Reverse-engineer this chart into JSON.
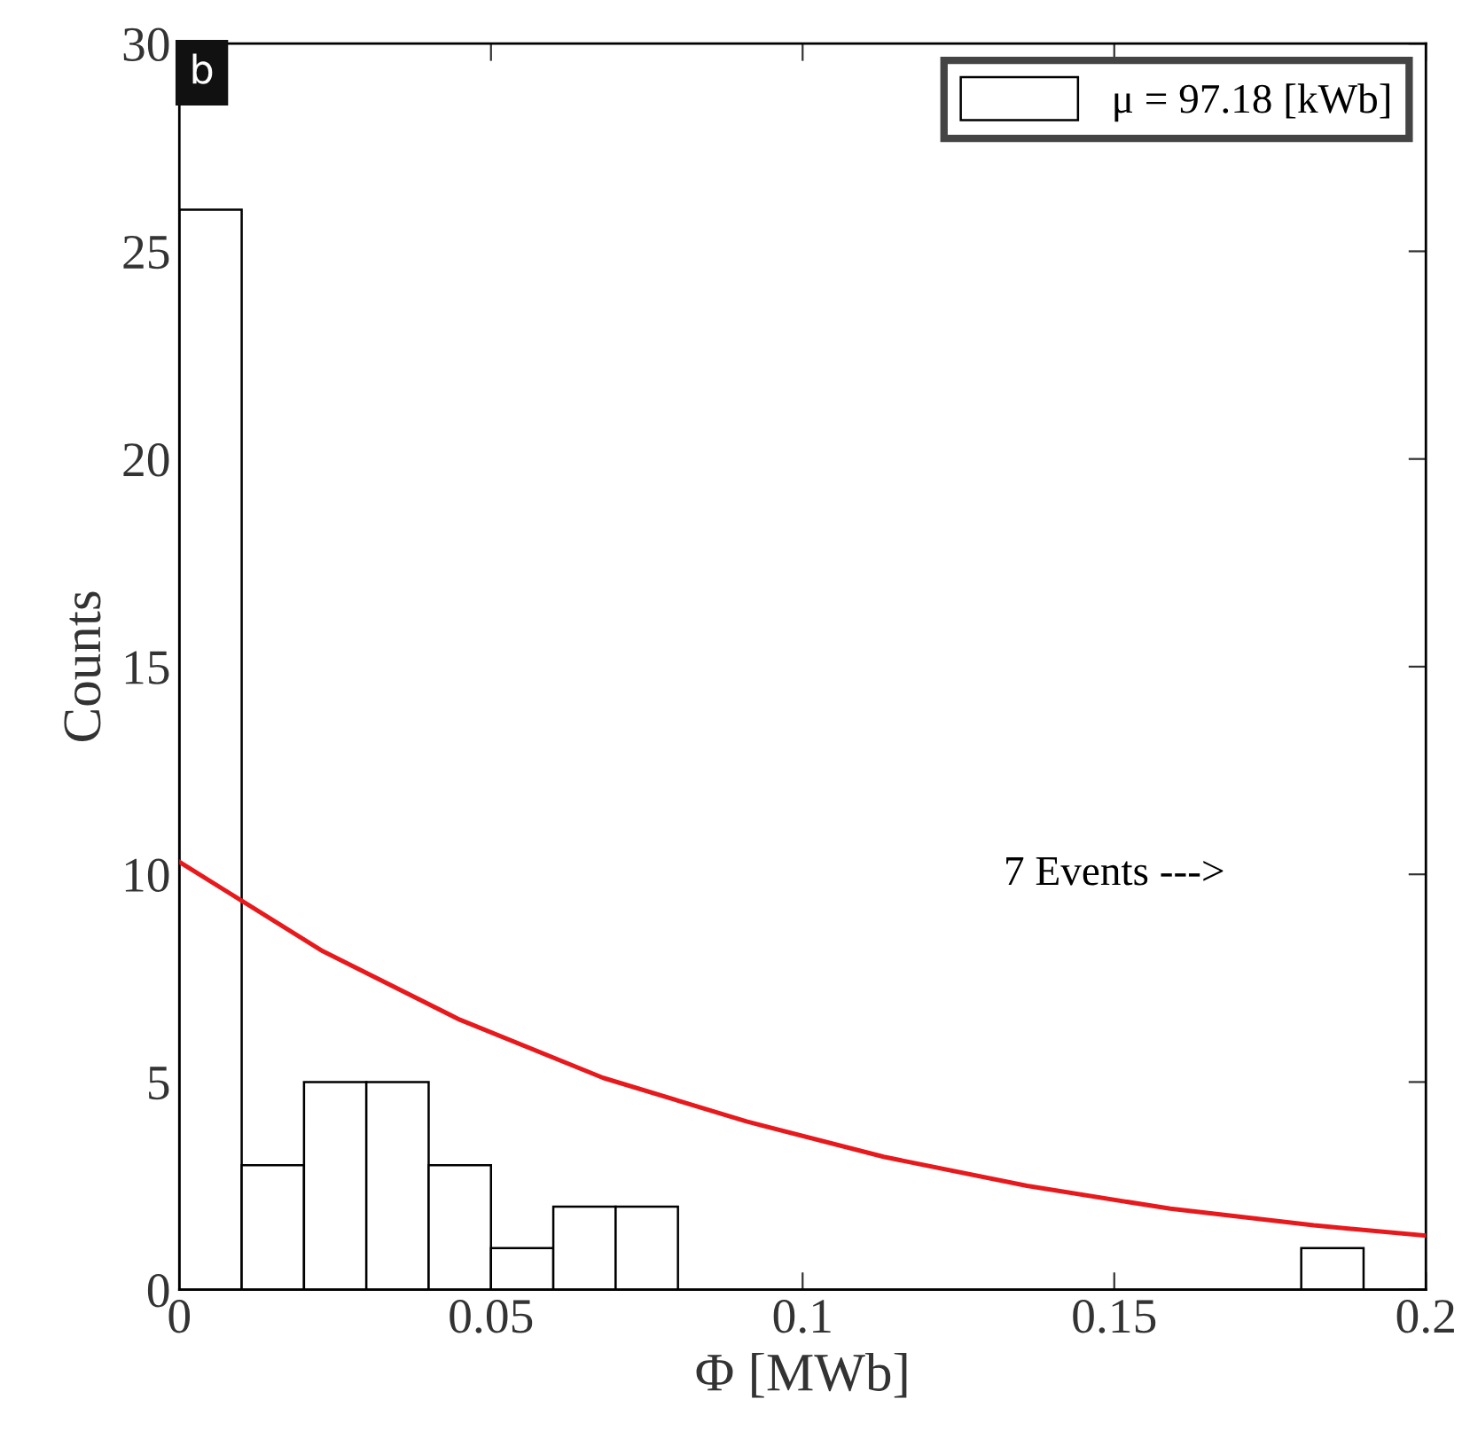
{
  "chart_data": {
    "type": "histogram",
    "xlabel": "Φ [MWb]",
    "ylabel": "Counts",
    "bins": [
      0,
      0.01,
      0.02,
      0.03,
      0.04,
      0.05,
      0.06,
      0.07,
      0.08,
      0.09,
      0.1,
      0.11,
      0.12,
      0.13,
      0.14,
      0.15,
      0.16,
      0.17,
      0.18,
      0.19,
      0.2
    ],
    "series": [
      {
        "name": "μ = 97.18 [kWb]",
        "color": "#ffffff",
        "values": [
          26,
          3,
          5,
          5,
          3,
          1,
          2,
          2,
          0,
          0,
          0,
          0,
          0,
          0,
          0,
          0,
          0,
          0,
          1,
          0
        ]
      },
      {
        "type": "line",
        "color": "#e8191c",
        "x": [
          0,
          0.023,
          0.045,
          0.068,
          0.091,
          0.113,
          0.136,
          0.159,
          0.182,
          0.2
        ],
        "values": [
          10.3,
          8.15,
          6.5,
          5.1,
          4.05,
          3.2,
          2.5,
          1.95,
          1.55,
          1.3
        ]
      }
    ],
    "xlim": [
      0,
      0.2
    ],
    "xticks": [
      0,
      0.05,
      0.1,
      0.15,
      0.2
    ],
    "ylim": [
      0,
      30
    ],
    "yticks": [
      0,
      5,
      10,
      15,
      20,
      25,
      30
    ],
    "annotations": [
      "7 Events --->",
      "b"
    ],
    "legend": "top right",
    "grid": false
  }
}
